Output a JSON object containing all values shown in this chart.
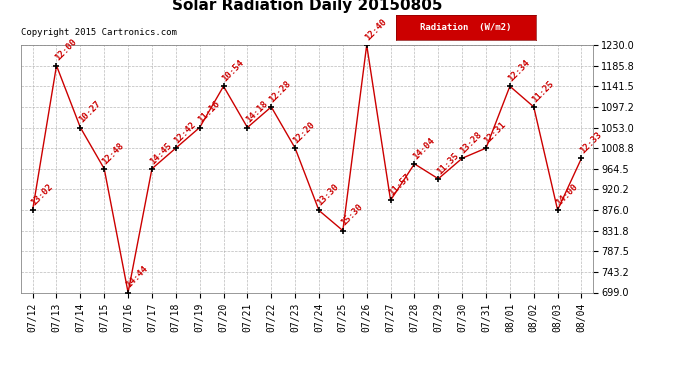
{
  "title": "Solar Radiation Daily 20150805",
  "copyright": "Copyright 2015 Cartronics.com",
  "legend_label": "Radiation  (W/m2)",
  "dates": [
    "07/12",
    "07/13",
    "07/14",
    "07/15",
    "07/16",
    "07/17",
    "07/18",
    "07/19",
    "07/20",
    "07/21",
    "07/22",
    "07/23",
    "07/24",
    "07/25",
    "07/26",
    "07/27",
    "07/28",
    "07/29",
    "07/30",
    "07/31",
    "08/01",
    "08/02",
    "08/03",
    "08/04"
  ],
  "values": [
    876.0,
    1185.8,
    1053.0,
    964.5,
    699.0,
    964.5,
    1008.8,
    1053.0,
    1141.5,
    1053.0,
    1097.2,
    1008.8,
    875.0,
    831.8,
    1230.0,
    897.0,
    975.0,
    943.0,
    987.0,
    1008.8,
    1141.5,
    1097.2,
    876.0,
    987.0
  ],
  "time_labels": [
    "13:02",
    "12:00",
    "10:27",
    "12:48",
    "14:44",
    "14:45",
    "12:42",
    "11:16",
    "10:54",
    "14:18",
    "12:28",
    "12:20",
    "13:30",
    "15:30",
    "12:40",
    "11:57",
    "14:04",
    "11:35",
    "13:28",
    "12:31",
    "12:34",
    "11:25",
    "14:00",
    "12:33"
  ],
  "line_color": "#cc0000",
  "marker_color": "#000000",
  "background_color": "#ffffff",
  "grid_color": "#aaaaaa",
  "ylim_min": 699.0,
  "ylim_max": 1230.0,
  "yticks": [
    699.0,
    743.2,
    787.5,
    831.8,
    876.0,
    920.2,
    964.5,
    1008.8,
    1053.0,
    1097.2,
    1141.5,
    1185.8,
    1230.0
  ],
  "title_fontsize": 11,
  "label_fontsize": 6.5,
  "tick_fontsize": 7,
  "copyright_fontsize": 6.5
}
